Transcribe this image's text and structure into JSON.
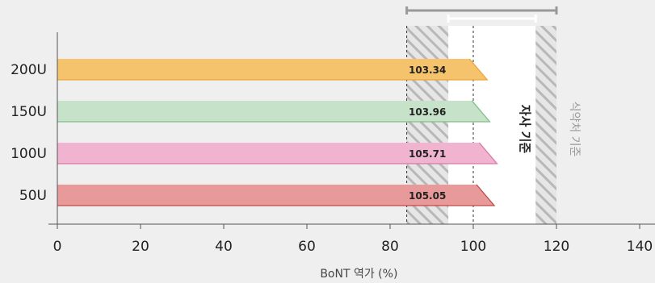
{
  "chart_data": {
    "type": "bar",
    "orientation": "horizontal",
    "categories": [
      "200U",
      "150U",
      "100U",
      "50U"
    ],
    "values": [
      103.34,
      103.96,
      105.71,
      105.05
    ],
    "value_labels": [
      "103.34",
      "103.96",
      "105.71",
      "105.05"
    ],
    "bar_colors": [
      "#f5c36c",
      "#c6e3c9",
      "#f0b3d0",
      "#e89a9a"
    ],
    "edge_colors": [
      "#e9a53d",
      "#7fbf89",
      "#d77aa6",
      "#c24a4a"
    ],
    "xlabel": "BoNT 역가 (%)",
    "xlim": [
      0,
      140
    ],
    "xticks": [
      "0",
      "20",
      "40",
      "60",
      "80",
      "100",
      "120",
      "140"
    ],
    "highlight_tick": "100",
    "highlight_color": "#e0307a",
    "reference_line": 100,
    "bands": [
      {
        "label": "자사 기준",
        "range": [
          94,
          115
        ],
        "fill": "#ffffff"
      },
      {
        "label": "식약처 기준",
        "range": [
          84,
          120
        ],
        "hatch": [
          [
            84,
            94
          ],
          [
            115,
            120
          ]
        ]
      }
    ]
  }
}
